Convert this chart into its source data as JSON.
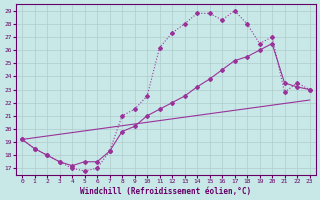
{
  "bg_color": "#c8e8e8",
  "grid_color": "#b0cccc",
  "line_color": "#993399",
  "xlim": [
    -0.5,
    23.5
  ],
  "ylim": [
    16.5,
    29.5
  ],
  "yticks": [
    17,
    18,
    19,
    20,
    21,
    22,
    23,
    24,
    25,
    26,
    27,
    28,
    29
  ],
  "xticks": [
    0,
    1,
    2,
    3,
    4,
    5,
    6,
    7,
    8,
    9,
    10,
    11,
    12,
    13,
    14,
    15,
    16,
    17,
    18,
    19,
    20,
    21,
    22,
    23
  ],
  "xlabel": "Windchill (Refroidissement éolien,°C)",
  "line1_x": [
    0,
    1,
    2,
    3,
    4,
    5,
    6,
    7,
    8,
    9,
    10,
    11,
    12,
    13,
    14,
    15,
    16,
    17,
    18,
    19,
    20,
    21,
    22,
    23
  ],
  "line1_y": [
    19.2,
    18.5,
    18.0,
    17.5,
    17.0,
    16.8,
    17.0,
    18.3,
    21.0,
    21.5,
    22.5,
    26.2,
    27.3,
    28.0,
    28.8,
    28.8,
    28.3,
    29.0,
    28.0,
    26.5,
    27.0,
    22.8,
    23.5,
    23.0
  ],
  "line2_x": [
    0,
    1,
    2,
    3,
    4,
    5,
    6,
    7,
    8,
    9,
    10,
    11,
    12,
    13,
    14,
    15,
    16,
    17,
    18,
    19,
    20,
    21,
    22,
    23
  ],
  "line2_y": [
    19.2,
    18.5,
    18.0,
    17.5,
    17.2,
    17.5,
    17.5,
    18.3,
    19.8,
    20.2,
    21.0,
    21.5,
    22.0,
    22.5,
    23.2,
    23.8,
    24.5,
    25.2,
    25.5,
    26.0,
    26.5,
    23.5,
    23.2,
    23.0
  ],
  "line3_x": [
    0,
    23
  ],
  "line3_y": [
    19.2,
    22.2
  ]
}
